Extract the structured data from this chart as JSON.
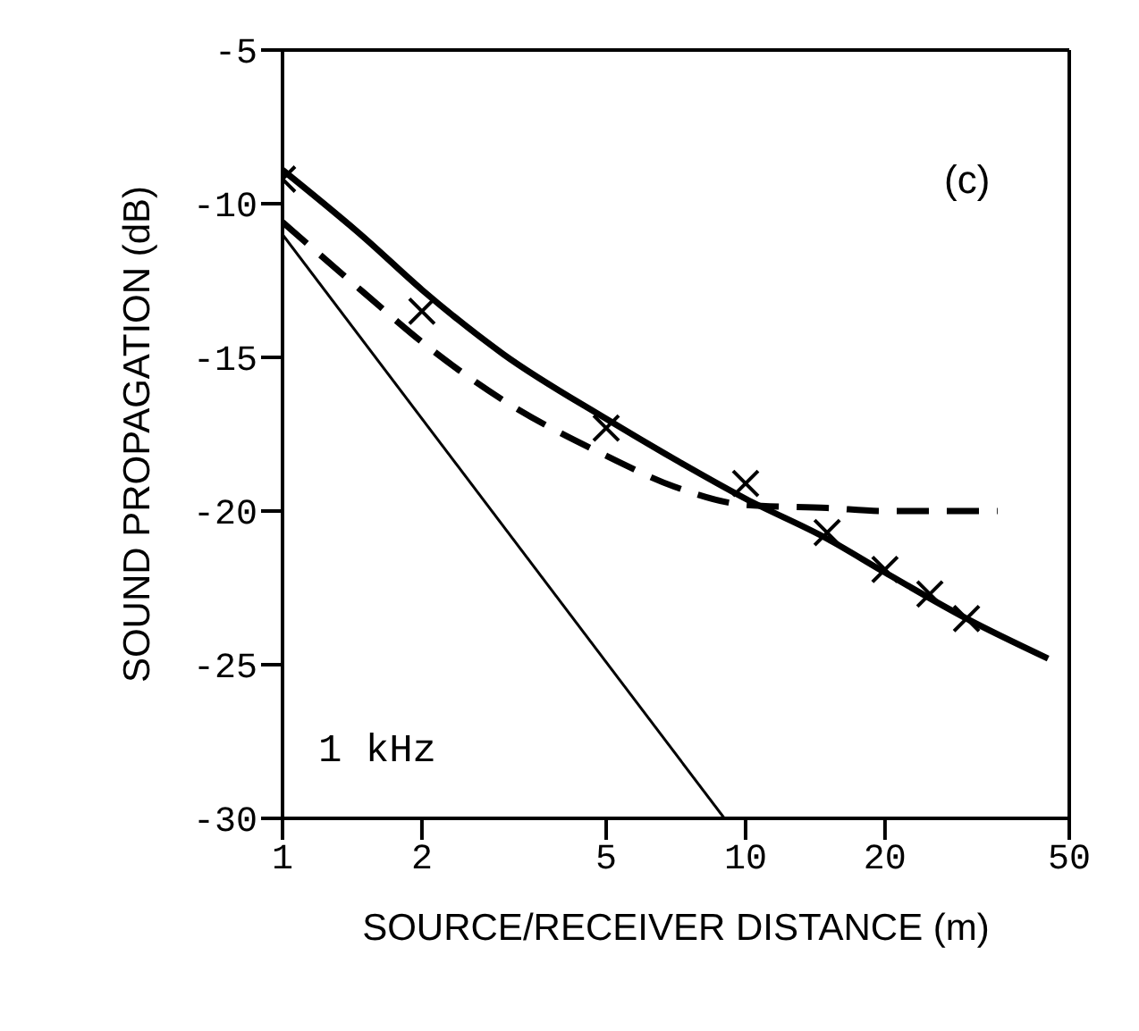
{
  "chart_data": {
    "type": "line",
    "xlabel": "SOURCE/RECEIVER DISTANCE (m)",
    "ylabel": "SOUND PROPAGATION (dB)",
    "log": "x",
    "xlim": [
      1,
      50
    ],
    "xticks": [
      1,
      2,
      5,
      10,
      20,
      50
    ],
    "ylim": [
      -30,
      -5
    ],
    "yticks": [
      -30,
      -25,
      -20,
      -15,
      -10,
      -5
    ],
    "legend": false,
    "annotations": [
      "(c)",
      "1 kHz"
    ],
    "series": [
      {
        "type": "scatter",
        "marker": "cross",
        "color": "#000000",
        "x": [
          1,
          2,
          5,
          10,
          15,
          20,
          25,
          30
        ],
        "values": [
          -9.2,
          -13.5,
          -17.3,
          -19.1,
          -20.7,
          -21.9,
          -22.7,
          -23.5
        ]
      },
      {
        "line_style": "solid",
        "color": "#000000",
        "x": [
          1,
          1.5,
          2,
          3,
          5,
          7,
          10,
          15,
          20,
          30,
          45
        ],
        "values": [
          -8.9,
          -11.1,
          -12.8,
          -14.9,
          -17,
          -18.3,
          -19.6,
          -20.9,
          -22,
          -23.5,
          -24.8
        ]
      },
      {
        "line_style": "dashed",
        "color": "#000000",
        "x": [
          1,
          1.5,
          2,
          3,
          5,
          7,
          10,
          15,
          20,
          35
        ],
        "values": [
          -10.6,
          -12.9,
          -14.5,
          -16.4,
          -18.2,
          -19.2,
          -19.8,
          -19.9,
          -20,
          -20
        ]
      },
      {
        "line_style": "solid",
        "color": "#000000",
        "x": [
          1,
          9
        ],
        "values": [
          -11,
          -30
        ]
      }
    ]
  }
}
